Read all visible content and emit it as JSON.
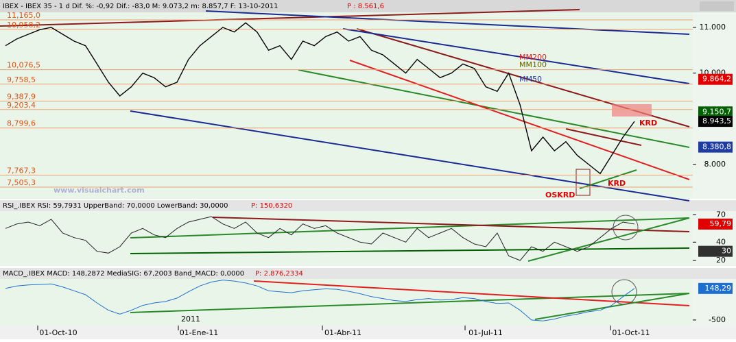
{
  "title_bar": {
    "text": "IBEX - IBEX 35 - 1 d Dif. %: -0,92 Dif.: -83,0 M: 9.073,2 m: 8.857,7 F: 13-10-2011",
    "price": "P : 8.561,6"
  },
  "price_panel": {
    "ylim": [
      7250,
      11330
    ],
    "yticks": [
      {
        "value": 11000,
        "label": "11.000"
      },
      {
        "value": 10000,
        "label": "10.000"
      },
      {
        "value": 8000,
        "label": "8.000"
      }
    ],
    "levels": [
      {
        "value": 11165,
        "label": "11,165,0"
      },
      {
        "value": 10958.2,
        "label": "10,958,2"
      },
      {
        "value": 10076.5,
        "label": "10,076,5"
      },
      {
        "value": 9758.5,
        "label": "9,758,5"
      },
      {
        "value": 9387.9,
        "label": "9,387,9"
      },
      {
        "value": 9203.4,
        "label": "9,203,4"
      },
      {
        "value": 8799.6,
        "label": "8,799,6"
      },
      {
        "value": 7767.3,
        "label": "7,767,3"
      },
      {
        "value": 7505.3,
        "label": "7,505,3"
      }
    ],
    "values": [
      10600,
      10750,
      10850,
      10950,
      11000,
      10850,
      10700,
      10600,
      10200,
      9800,
      9500,
      9700,
      10000,
      9900,
      9700,
      9800,
      10300,
      10600,
      10800,
      11000,
      10900,
      11100,
      10900,
      10500,
      10600,
      10300,
      10700,
      10600,
      10800,
      10900,
      10700,
      10800,
      10500,
      10400,
      10200,
      10000,
      10300,
      10100,
      9900,
      10000,
      10200,
      10100,
      9700,
      9600,
      10000,
      9300,
      8300,
      8600,
      8300,
      8500,
      8200,
      8000,
      7800,
      8200,
      8600,
      8943.5
    ],
    "color": "#000000",
    "markers": [
      {
        "value": 9864.2,
        "label": "9.864,2",
        "color": "#e00000"
      },
      {
        "value": 9150.7,
        "label": "9.150,7",
        "color": "#006000"
      },
      {
        "value": 8943.5,
        "label": "8.943,5",
        "color": "#000000"
      },
      {
        "value": 8380.8,
        "label": "8.380,8",
        "color": "#1e3ca0"
      }
    ],
    "annotations": [
      "MM200",
      "MM100",
      "MM50",
      "KRD",
      "KRD",
      "OSKRD"
    ],
    "watermark": "www.visualchart.com"
  },
  "rsi_panel": {
    "header": "RSI_.IBEX RSI: 59,7931 UpperBand: 70,0000 LowerBand: 30,0000",
    "header_p": "P: 150,6320",
    "ylim": [
      14,
      74
    ],
    "yticks": [
      70,
      40,
      20
    ],
    "markers": [
      {
        "value": 59.79,
        "label": "59,79",
        "color": "#e00000"
      },
      {
        "value": 30,
        "label": "30",
        "color": "#303030"
      }
    ],
    "values": [
      55,
      60,
      62,
      58,
      65,
      50,
      45,
      42,
      30,
      28,
      35,
      50,
      55,
      48,
      45,
      55,
      62,
      65,
      68,
      60,
      55,
      62,
      50,
      45,
      55,
      48,
      60,
      55,
      58,
      50,
      45,
      40,
      38,
      50,
      45,
      40,
      55,
      45,
      50,
      55,
      45,
      38,
      35,
      50,
      25,
      20,
      35,
      30,
      40,
      35,
      30,
      35,
      45,
      55,
      62,
      59.79
    ],
    "color": "#202020"
  },
  "macd_panel": {
    "header": "MACD_.IBEX MACD: 148,2872 MediaSIG: 67,2003 Band_MACD: 0,0000",
    "header_p": "P: 2.876,2334",
    "ylim": [
      -614,
      343
    ],
    "yticks": [
      -500
    ],
    "markers": [
      {
        "value": 148.29,
        "label": "148,29",
        "color": "#1e6ed0"
      }
    ],
    "values": [
      150,
      200,
      220,
      230,
      240,
      180,
      100,
      20,
      -150,
      -300,
      -380,
      -300,
      -200,
      -150,
      -120,
      -50,
      80,
      200,
      280,
      320,
      300,
      260,
      200,
      100,
      80,
      60,
      100,
      120,
      140,
      130,
      90,
      40,
      -20,
      -60,
      -100,
      -120,
      -80,
      -60,
      -90,
      -80,
      -40,
      -60,
      -120,
      -160,
      -150,
      -300,
      -500,
      -520,
      -480,
      -420,
      -380,
      -330,
      -300,
      -200,
      -20,
      148.29
    ],
    "color": "#1e6ed0"
  },
  "x_axis": {
    "labels": [
      "01-Oct-10",
      "01-Ene-11",
      "01-Abr-11",
      "01-Jul-11",
      "01-Oct-11"
    ],
    "year": "2011"
  }
}
